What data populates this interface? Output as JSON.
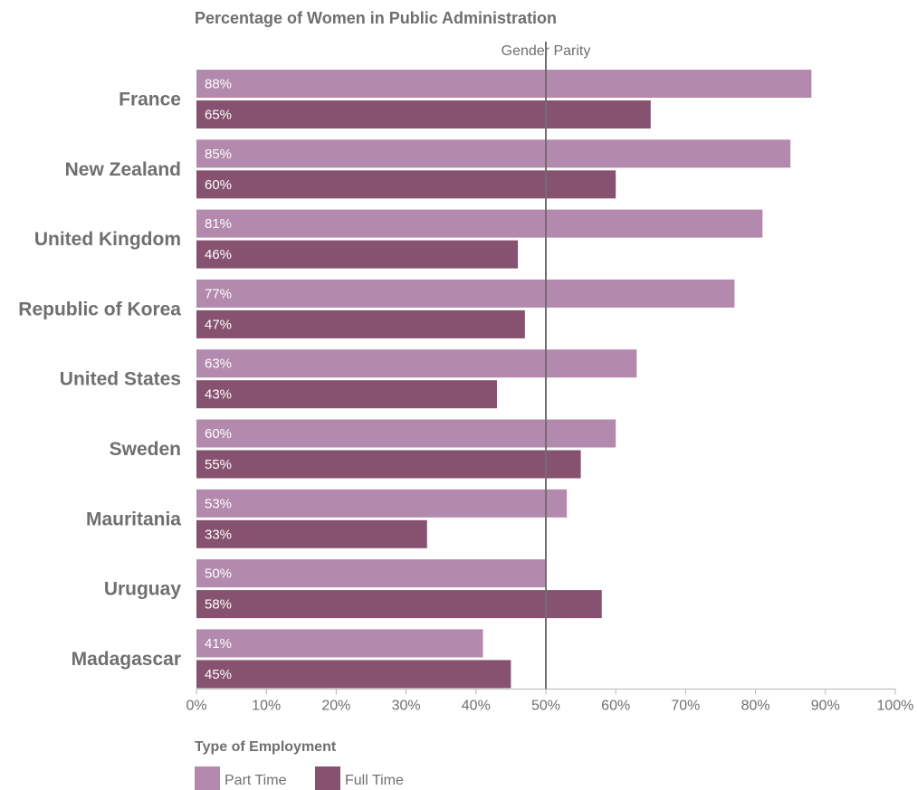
{
  "chart_data": {
    "type": "bar",
    "orientation": "horizontal",
    "title": "Percentage of Women in Public Administration",
    "categories": [
      "France",
      "New Zealand",
      "United Kingdom",
      "Republic of Korea",
      "United States",
      "Sweden",
      "Mauritania",
      "Uruguay",
      "Madagascar"
    ],
    "series": [
      {
        "name": "Part Time",
        "color": "#b389ad",
        "values": [
          88,
          85,
          81,
          77,
          63,
          60,
          53,
          50,
          41
        ],
        "labels": [
          "88%",
          "85%",
          "81%",
          "77%",
          "63%",
          "60%",
          "53%",
          "50%",
          "41%"
        ]
      },
      {
        "name": "Full Time",
        "color": "#86526f",
        "values": [
          65,
          60,
          46,
          47,
          43,
          55,
          33,
          58,
          45
        ],
        "labels": [
          "65%",
          "60%",
          "46%",
          "47%",
          "43%",
          "55%",
          "33%",
          "58%",
          "45%"
        ]
      }
    ],
    "xlim": [
      0,
      100
    ],
    "xticks": [
      0,
      10,
      20,
      30,
      40,
      50,
      60,
      70,
      80,
      90,
      100
    ],
    "xtick_labels": [
      "0%",
      "10%",
      "20%",
      "30%",
      "40%",
      "50%",
      "60%",
      "70%",
      "80%",
      "90%",
      "100%"
    ],
    "reference_line": {
      "value": 50,
      "label": "Gender Parity",
      "color": "#6f6f6f"
    },
    "legend": {
      "title": "Type of Employment",
      "position": "bottom-left"
    },
    "grid": false
  }
}
